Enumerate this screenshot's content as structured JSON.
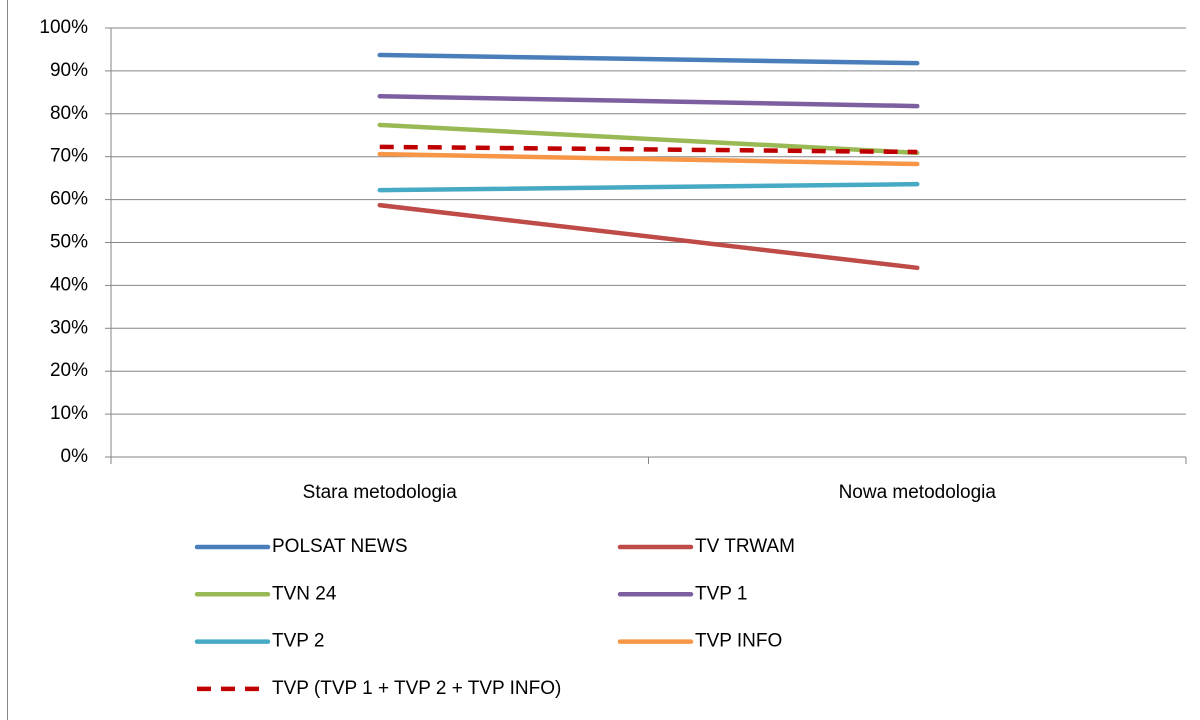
{
  "chart_data": {
    "type": "line",
    "categories": [
      "Stara metodologia",
      "Nowa metodologia"
    ],
    "ylim": [
      0,
      100
    ],
    "yticks": [
      {
        "value": 0,
        "label": "0%"
      },
      {
        "value": 10,
        "label": "10%"
      },
      {
        "value": 20,
        "label": "20%"
      },
      {
        "value": 30,
        "label": "30%"
      },
      {
        "value": 40,
        "label": "40%"
      },
      {
        "value": 50,
        "label": "50%"
      },
      {
        "value": 60,
        "label": "60%"
      },
      {
        "value": 70,
        "label": "70%"
      },
      {
        "value": 80,
        "label": "80%"
      },
      {
        "value": 90,
        "label": "90%"
      },
      {
        "value": 100,
        "label": "100%"
      }
    ],
    "grid": true,
    "legend": "bottom",
    "series": [
      {
        "name": "POLSAT NEWS",
        "color": "#4a7ebb",
        "values": [
          93.7,
          91.8
        ]
      },
      {
        "name": "TV TRWAM",
        "color": "#be4b48",
        "values": [
          58.7,
          44.1
        ]
      },
      {
        "name": "TVN 24",
        "color": "#98b954",
        "values": [
          77.4,
          70.9
        ]
      },
      {
        "name": "TVP 1",
        "color": "#7d5fa0",
        "values": [
          84.1,
          81.8
        ]
      },
      {
        "name": "TVP 2",
        "color": "#46aac5",
        "values": [
          62.2,
          63.6
        ]
      },
      {
        "name": "TVP INFO",
        "color": "#f79646",
        "values": [
          70.6,
          68.3
        ]
      },
      {
        "name": "TVP (TVP 1 + TVP 2 + TVP INFO)",
        "color": "#c00000",
        "values": [
          72.3,
          71.1
        ],
        "dashed": true
      }
    ]
  }
}
